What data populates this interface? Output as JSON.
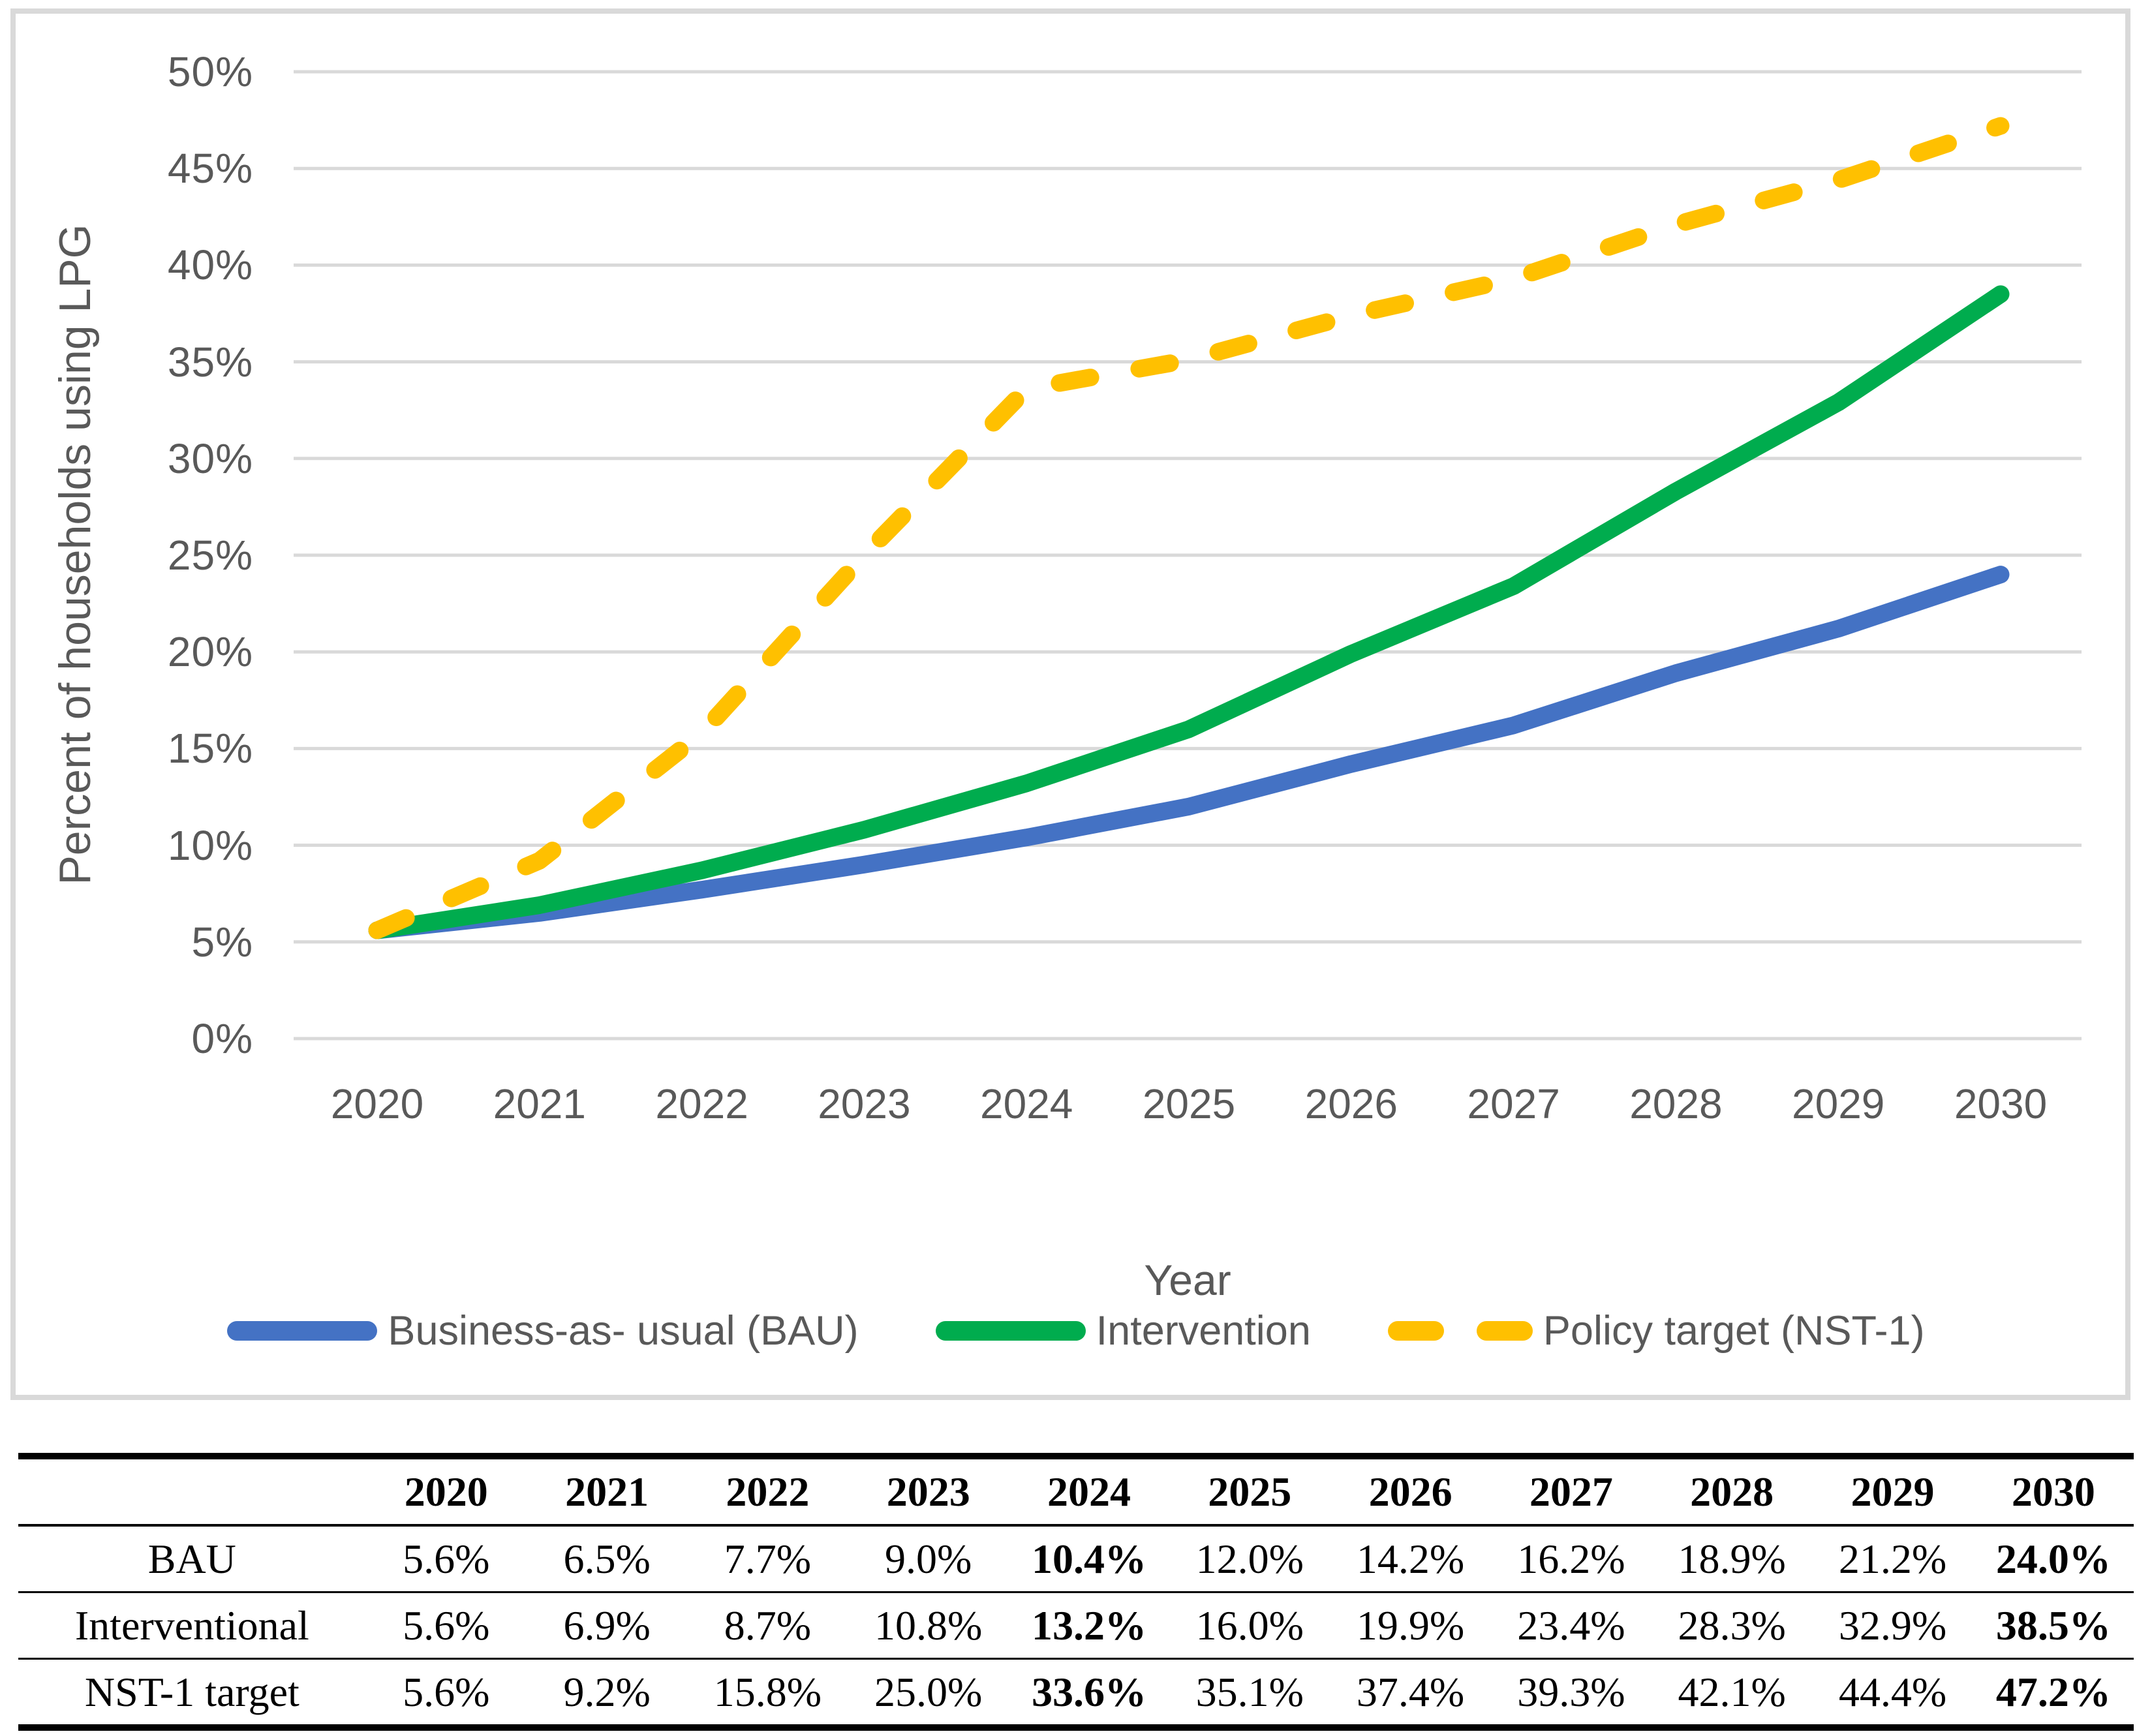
{
  "figure": {
    "y_axis_title": "Percent of households using LPG",
    "x_axis_title": "Year",
    "colors": {
      "bau_blue": "#4472C4",
      "intervention_green": "#00AC4E",
      "target_yellow": "#FFC000",
      "gridline": "#D9D9D9",
      "axis_text": "#595959",
      "figure_border": "#D9D9D9"
    },
    "legend": [
      {
        "label": "Business-as- usual (BAU)",
        "color": "#4472C4",
        "style": "solid"
      },
      {
        "label": "Intervention",
        "color": "#00AC4E",
        "style": "solid"
      },
      {
        "label": "Policy target (NST-1)",
        "color": "#FFC000",
        "style": "dashed"
      }
    ]
  },
  "chart_data": {
    "type": "line",
    "categories": [
      "2020",
      "2021",
      "2022",
      "2023",
      "2024",
      "2025",
      "2026",
      "2027",
      "2028",
      "2029",
      "2030"
    ],
    "series": [
      {
        "name": "Business-as- usual (BAU)",
        "color": "#4472C4",
        "line_style": "solid",
        "values": [
          5.6,
          6.5,
          7.7,
          9.0,
          10.4,
          12.0,
          14.2,
          16.2,
          18.9,
          21.2,
          24.0
        ]
      },
      {
        "name": "Intervention",
        "color": "#00AC4E",
        "line_style": "solid",
        "values": [
          5.6,
          6.9,
          8.7,
          10.8,
          13.2,
          16.0,
          19.9,
          23.4,
          28.3,
          32.9,
          38.5
        ]
      },
      {
        "name": "Policy target (NST-1)",
        "color": "#FFC000",
        "line_style": "dashed",
        "values": [
          5.6,
          9.2,
          15.8,
          25.0,
          33.6,
          35.1,
          37.4,
          39.3,
          42.1,
          44.4,
          47.2
        ]
      }
    ],
    "title": "",
    "xlabel": "Year",
    "ylabel": "Percent of households using LPG",
    "ylim": [
      0,
      50
    ],
    "y_ticks": [
      "0%",
      "5%",
      "10%",
      "15%",
      "20%",
      "25%",
      "30%",
      "35%",
      "40%",
      "45%",
      "50%"
    ],
    "grid": true,
    "legend_position": "bottom"
  },
  "table": {
    "corner_label": "",
    "header": [
      "2020",
      "2021",
      "2022",
      "2023",
      "2024",
      "2025",
      "2026",
      "2027",
      "2028",
      "2029",
      "2030"
    ],
    "rows": [
      {
        "label": "BAU",
        "values": [
          "5.6%",
          "6.5%",
          "7.7%",
          "9.0%",
          "10.4%",
          "12.0%",
          "14.2%",
          "16.2%",
          "18.9%",
          "21.2%",
          "24.0%"
        ]
      },
      {
        "label": "Interventional",
        "values": [
          "5.6%",
          "6.9%",
          "8.7%",
          "10.8%",
          "13.2%",
          "16.0%",
          "19.9%",
          "23.4%",
          "28.3%",
          "32.9%",
          "38.5%"
        ]
      },
      {
        "label": "NST-1 target",
        "values": [
          "5.6%",
          "9.2%",
          "15.8%",
          "25.0%",
          "33.6%",
          "35.1%",
          "37.4%",
          "39.3%",
          "42.1%",
          "44.4%",
          "47.2%"
        ]
      }
    ],
    "bold_value_indexes": [
      4,
      10
    ]
  }
}
